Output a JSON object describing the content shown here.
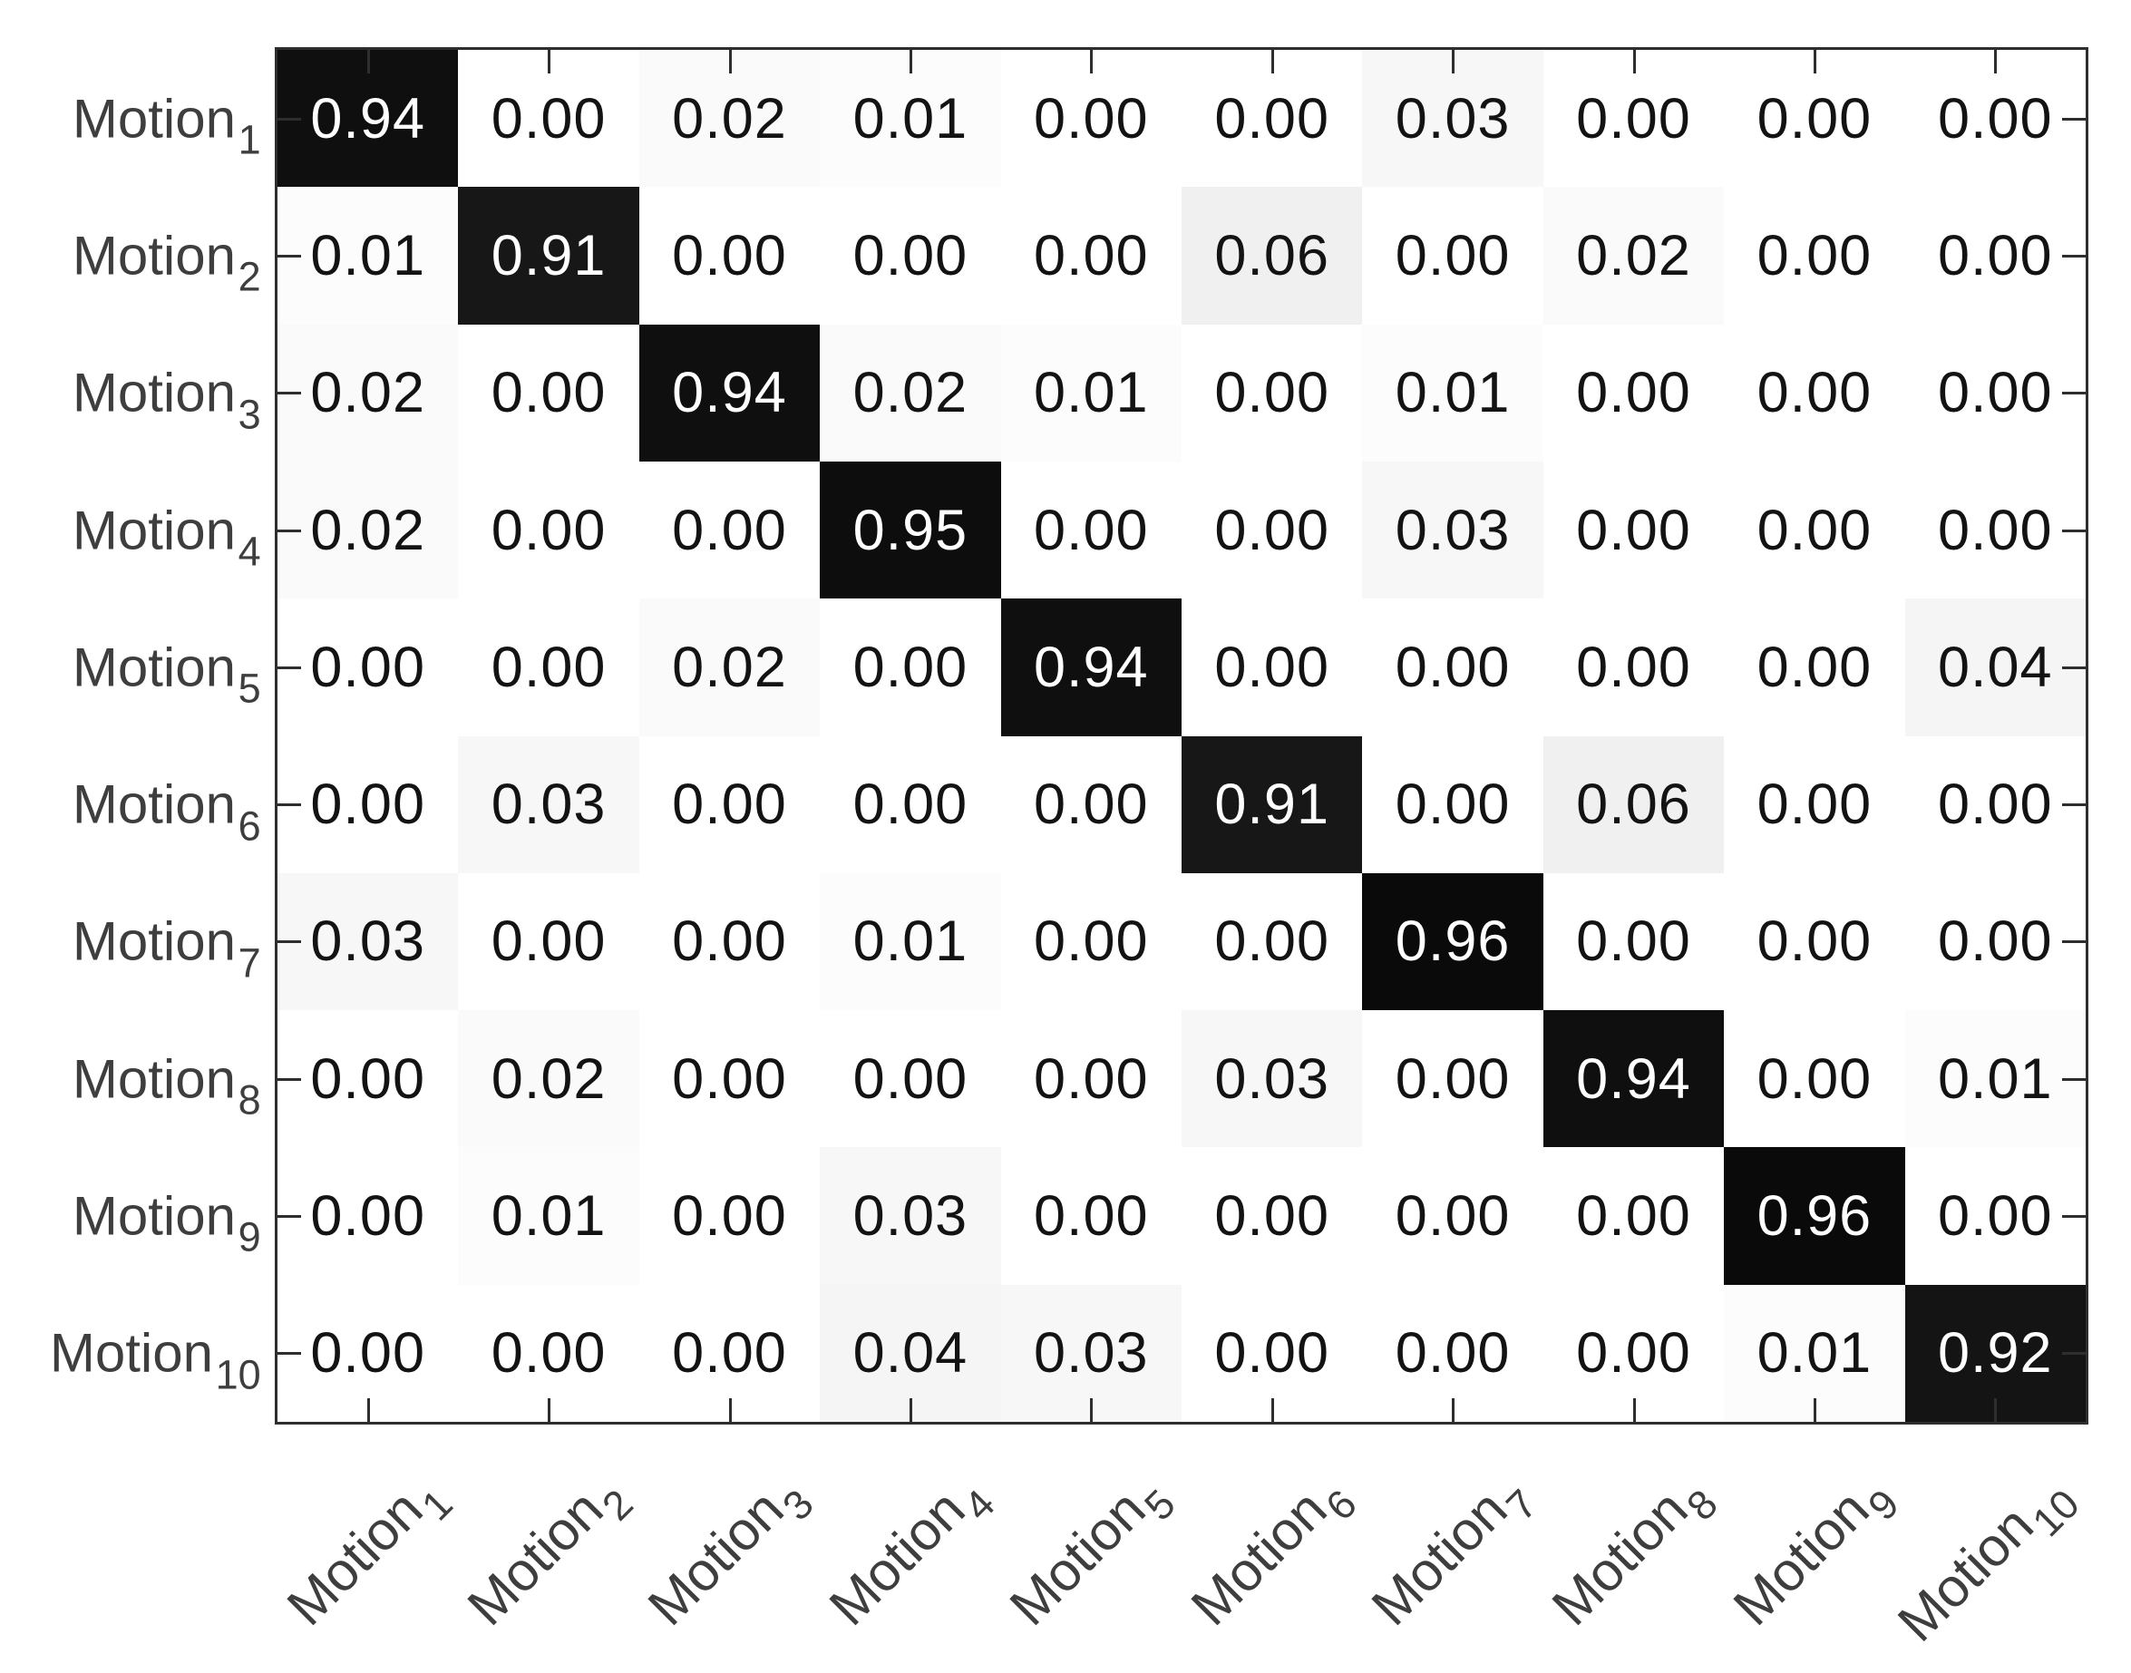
{
  "figure": {
    "background": "#ffffff",
    "axis_color": "#2e2e2e",
    "axis_label_color": "#3e3e3e",
    "cell_text_dark_bg": "#ffffff",
    "cell_text_light_bg": "#131313"
  },
  "chart_data": {
    "type": "heatmap",
    "title": "",
    "xlabel": "",
    "ylabel": "",
    "legend": "none",
    "grid": "off",
    "colormap": {
      "style": "linear-grayscale",
      "value_0": "#ffffff",
      "value_1": "#000000"
    },
    "value_format": "two_decimals",
    "value_range": [
      0,
      1
    ],
    "row_labels": [
      {
        "base": "Motion",
        "sub": "1"
      },
      {
        "base": "Motion",
        "sub": "2"
      },
      {
        "base": "Motion",
        "sub": "3"
      },
      {
        "base": "Motion",
        "sub": "4"
      },
      {
        "base": "Motion",
        "sub": "5"
      },
      {
        "base": "Motion",
        "sub": "6"
      },
      {
        "base": "Motion",
        "sub": "7"
      },
      {
        "base": "Motion",
        "sub": "8"
      },
      {
        "base": "Motion",
        "sub": "9"
      },
      {
        "base": "Motion",
        "sub": "10"
      }
    ],
    "col_labels": [
      {
        "base": "Motion",
        "sub": "1"
      },
      {
        "base": "Motion",
        "sub": "2"
      },
      {
        "base": "Motion",
        "sub": "3"
      },
      {
        "base": "Motion",
        "sub": "4"
      },
      {
        "base": "Motion",
        "sub": "5"
      },
      {
        "base": "Motion",
        "sub": "6"
      },
      {
        "base": "Motion",
        "sub": "7"
      },
      {
        "base": "Motion",
        "sub": "8"
      },
      {
        "base": "Motion",
        "sub": "9"
      },
      {
        "base": "Motion",
        "sub": "10"
      }
    ],
    "values": [
      [
        0.94,
        0.0,
        0.02,
        0.01,
        0.0,
        0.0,
        0.03,
        0.0,
        0.0,
        0.0
      ],
      [
        0.01,
        0.91,
        0.0,
        0.0,
        0.0,
        0.06,
        0.0,
        0.02,
        0.0,
        0.0
      ],
      [
        0.02,
        0.0,
        0.94,
        0.02,
        0.01,
        0.0,
        0.01,
        0.0,
        0.0,
        0.0
      ],
      [
        0.02,
        0.0,
        0.0,
        0.95,
        0.0,
        0.0,
        0.03,
        0.0,
        0.0,
        0.0
      ],
      [
        0.0,
        0.0,
        0.02,
        0.0,
        0.94,
        0.0,
        0.0,
        0.0,
        0.0,
        0.04
      ],
      [
        0.0,
        0.03,
        0.0,
        0.0,
        0.0,
        0.91,
        0.0,
        0.06,
        0.0,
        0.0
      ],
      [
        0.03,
        0.0,
        0.0,
        0.01,
        0.0,
        0.0,
        0.96,
        0.0,
        0.0,
        0.0
      ],
      [
        0.0,
        0.02,
        0.0,
        0.0,
        0.0,
        0.03,
        0.0,
        0.94,
        0.0,
        0.01
      ],
      [
        0.0,
        0.01,
        0.0,
        0.03,
        0.0,
        0.0,
        0.0,
        0.0,
        0.96,
        0.0
      ],
      [
        0.0,
        0.0,
        0.0,
        0.04,
        0.03,
        0.0,
        0.0,
        0.0,
        0.01,
        0.92
      ]
    ]
  }
}
